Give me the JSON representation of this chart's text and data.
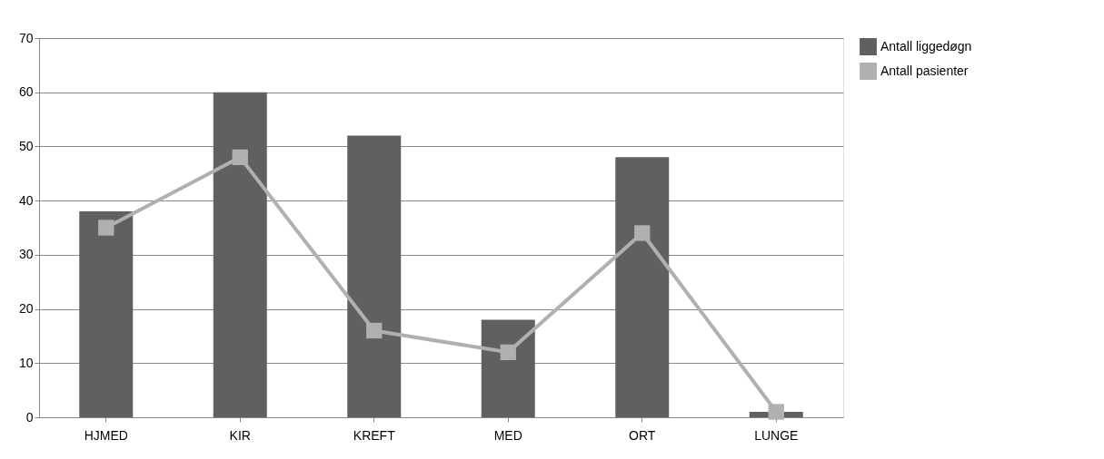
{
  "chart_data": {
    "type": "bar",
    "categories": [
      "HJMED",
      "KIR",
      "KREFT",
      "MED",
      "ORT",
      "LUNGE"
    ],
    "series": [
      {
        "name": "Antall liggedøgn",
        "color": "#606060",
        "values": [
          38,
          60,
          52,
          18,
          48,
          1
        ]
      },
      {
        "name": "Antall pasienter",
        "type": "line",
        "color": "#b0b0b0",
        "values": [
          35,
          48,
          16,
          12,
          34,
          1
        ],
        "marker": "square",
        "line_style": "solid"
      }
    ],
    "ylim": [
      0,
      70
    ],
    "yticks": [
      0,
      10,
      20,
      30,
      40,
      50,
      60,
      70
    ],
    "grid": "y",
    "legend": "right"
  }
}
